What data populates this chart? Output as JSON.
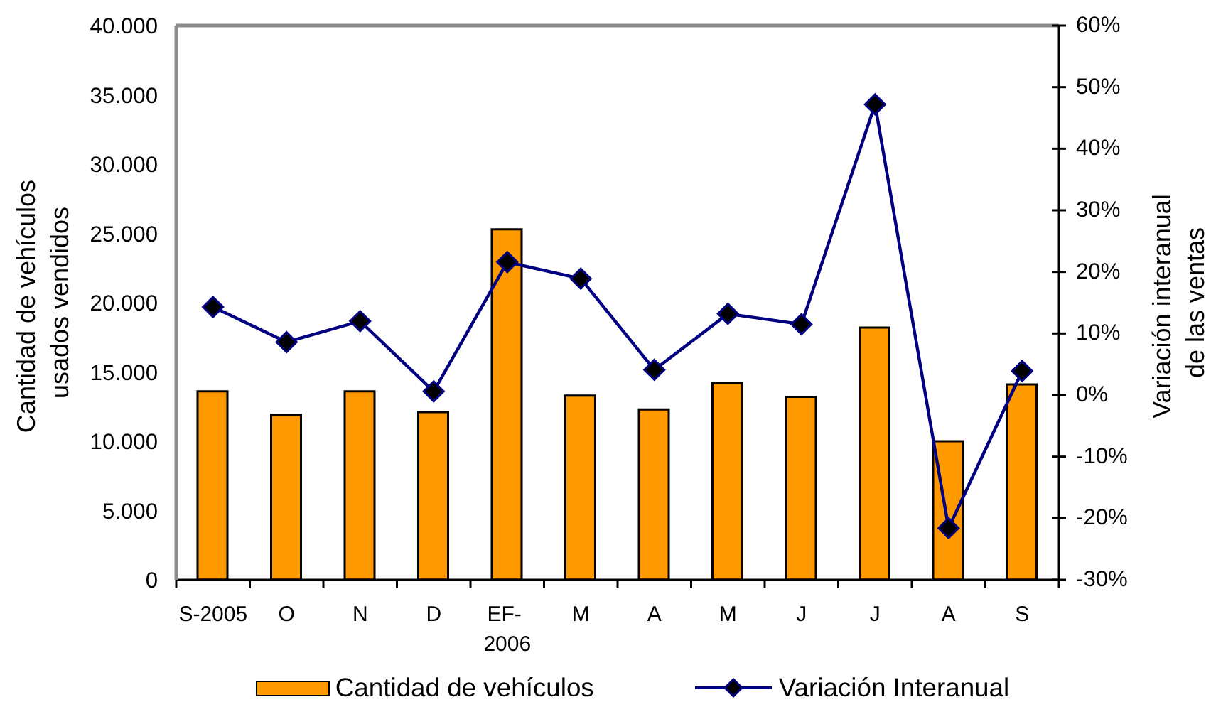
{
  "chart_data": {
    "type": "bar",
    "ylabel": "Cantidad de vehículos\nusados vendidos",
    "y2label": "Variación interanual\nde las ventas",
    "categories": [
      "S-2005",
      "O",
      "N",
      "D",
      "EF-\n2006",
      "M",
      "A",
      "M",
      "J",
      "J",
      "A",
      "S"
    ],
    "series": [
      {
        "name": "Cantidad de vehículos",
        "color": "#ff9900",
        "values": [
          13600,
          11900,
          13600,
          12100,
          25300,
          13300,
          12300,
          14200,
          13200,
          18200,
          10000,
          14100
        ]
      },
      {
        "name": "Variación Interanual",
        "type": "line",
        "axis": "y2",
        "color": "#000080",
        "values": [
          14.3,
          8.6,
          12.0,
          0.6,
          21.6,
          18.9,
          4.1,
          13.2,
          11.5,
          47.2,
          -21.6,
          3.9
        ]
      }
    ],
    "ylim": [
      0,
      40000
    ],
    "yticks": [
      0,
      {
        "value": 5000,
        "label": "5.000"
      },
      {
        "value": 10000,
        "label": "10.000"
      },
      {
        "value": 15000,
        "label": "15.000"
      },
      {
        "value": 20000,
        "label": "20.000"
      },
      {
        "value": 25000,
        "label": "25.000"
      },
      {
        "value": 30000,
        "label": "30.000"
      },
      {
        "value": 35000,
        "label": "35.000"
      },
      {
        "value": 40000,
        "label": "40.000"
      }
    ],
    "y2lim": [
      -30,
      60
    ],
    "y2ticks": [
      {
        "value": -30,
        "label": "-30%"
      },
      {
        "value": -20,
        "label": "-20%"
      },
      {
        "value": -10,
        "label": "-10%"
      },
      {
        "value": 0,
        "label": "0%"
      },
      {
        "value": 10,
        "label": "10%"
      },
      {
        "value": 20,
        "label": "20%"
      },
      {
        "value": 30,
        "label": "30%"
      },
      {
        "value": 40,
        "label": "40%"
      },
      {
        "value": 50,
        "label": "50%"
      },
      {
        "value": 60,
        "label": "60%"
      }
    ],
    "marker": "diamond",
    "legend": "bottom",
    "grid": false
  }
}
